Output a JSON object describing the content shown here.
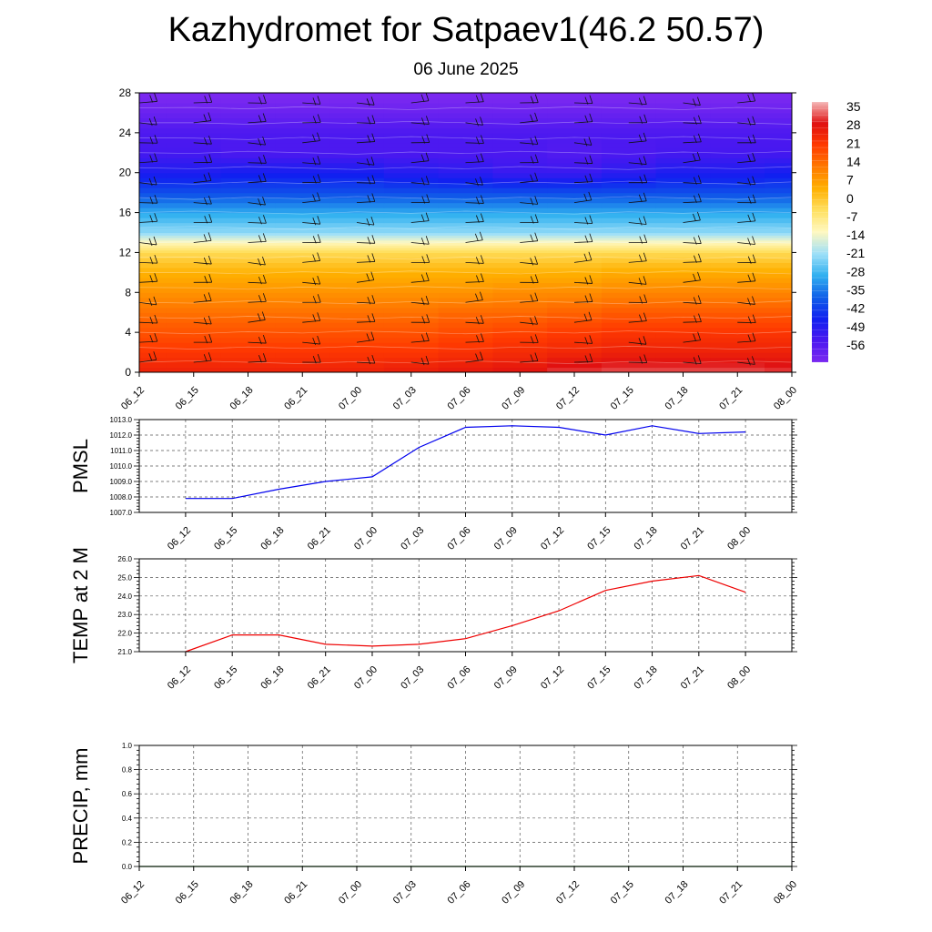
{
  "header": {
    "title": "Kazhydromet for Satpaev1(46.2 50.57)",
    "subtitle": "06 June 2025"
  },
  "chart_data": [
    {
      "type": "heatmap",
      "name": "temperature-cross-section",
      "x": [
        "06_12",
        "06_15",
        "06_18",
        "06_21",
        "07_00",
        "07_03",
        "07_06",
        "07_09",
        "07_12",
        "07_15",
        "07_18",
        "07_21",
        "08_00"
      ],
      "ylim": [
        0,
        28
      ],
      "yticks": [
        0,
        4,
        8,
        12,
        16,
        20,
        24,
        28
      ],
      "colorbar_labels": [
        "35",
        "28",
        "21",
        "14",
        "7",
        "0",
        "-7",
        "-14",
        "-21",
        "-28",
        "-35",
        "-42",
        "-49",
        "-56"
      ],
      "colorbar_stops": [
        "#f4b8b8",
        "#e01010",
        "#ff3a00",
        "#ff7a00",
        "#ffb000",
        "#ffe060",
        "#fff8c0",
        "#9ee0f8",
        "#30b0f0",
        "#1060e8",
        "#1020f0",
        "#4a18f0",
        "#7a28f0"
      ],
      "levels": [
        {
          "height": 0,
          "values": [
            26,
            26,
            26,
            26,
            26,
            27,
            28,
            29,
            32,
            33,
            33,
            33,
            32
          ]
        },
        {
          "height": 2,
          "values": [
            22,
            22,
            22,
            22,
            22,
            22,
            23,
            24,
            25,
            26,
            26,
            26,
            26
          ]
        },
        {
          "height": 4,
          "values": [
            18,
            18,
            18,
            18,
            18,
            18,
            19,
            20,
            21,
            22,
            22,
            22,
            22
          ]
        },
        {
          "height": 6,
          "values": [
            14,
            14,
            14,
            14,
            14,
            14,
            15,
            15,
            16,
            17,
            17,
            17,
            17
          ]
        },
        {
          "height": 8,
          "values": [
            9,
            9,
            9,
            9,
            9,
            9,
            9,
            10,
            10,
            11,
            11,
            11,
            11
          ]
        },
        {
          "height": 10,
          "values": [
            4,
            4,
            4,
            4,
            4,
            4,
            4,
            4,
            4,
            5,
            5,
            5,
            5
          ]
        },
        {
          "height": 12,
          "values": [
            -3,
            -3,
            -3,
            -3,
            -3,
            -3,
            -3,
            -3,
            -3,
            -3,
            -3,
            -3,
            -3
          ]
        },
        {
          "height": 13,
          "values": [
            -12,
            -12,
            -12,
            -12,
            -12,
            -12,
            -12,
            -12,
            -12,
            -12,
            -12,
            -12,
            -12
          ]
        },
        {
          "height": 14,
          "values": [
            -22,
            -22,
            -22,
            -22,
            -22,
            -22,
            -22,
            -22,
            -22,
            -22,
            -22,
            -22,
            -22
          ]
        },
        {
          "height": 16,
          "values": [
            -30,
            -30,
            -30,
            -30,
            -30,
            -30,
            -30,
            -30,
            -30,
            -30,
            -30,
            -30,
            -30
          ]
        },
        {
          "height": 18,
          "values": [
            -40,
            -40,
            -40,
            -40,
            -40,
            -40,
            -40,
            -40,
            -40,
            -40,
            -40,
            -40,
            -40
          ]
        },
        {
          "height": 20,
          "values": [
            -48,
            -48,
            -47,
            -47,
            -47,
            -49,
            -50,
            -52,
            -52,
            -50,
            -48,
            -48,
            -47
          ]
        },
        {
          "height": 22,
          "values": [
            -54,
            -54,
            -55,
            -55,
            -55,
            -55,
            -55,
            -55,
            -56,
            -55,
            -54,
            -54,
            -54
          ]
        },
        {
          "height": 24,
          "values": [
            -55,
            -55,
            -55,
            -55,
            -55,
            -55,
            -55,
            -55,
            -55,
            -55,
            -55,
            -55,
            -55
          ]
        },
        {
          "height": 26,
          "values": [
            -60,
            -60,
            -60,
            -60,
            -60,
            -60,
            -60,
            -60,
            -60,
            -60,
            -60,
            -60,
            -60
          ]
        },
        {
          "height": 28,
          "values": [
            -64,
            -64,
            -64,
            -64,
            -64,
            -64,
            -64,
            -64,
            -64,
            -64,
            -64,
            -64,
            -64
          ]
        }
      ],
      "wind_rows": [
        1,
        3,
        5,
        7,
        9,
        11,
        13,
        15,
        17,
        19,
        21,
        23,
        25,
        27
      ]
    },
    {
      "type": "line",
      "name": "pmsl",
      "ylabel": "PMSL",
      "x": [
        "06_12",
        "06_15",
        "06_18",
        "06_21",
        "07_00",
        "07_03",
        "07_06",
        "07_09",
        "07_12",
        "07_15",
        "07_18",
        "07_21",
        "08_00"
      ],
      "values": [
        1007.9,
        1007.9,
        1008.5,
        1009.0,
        1009.3,
        1011.2,
        1012.5,
        1012.6,
        1012.5,
        1012.0,
        1012.6,
        1012.1,
        1012.2
      ],
      "ylim": [
        1007.0,
        1013.0
      ],
      "yticks": [
        "1007.0",
        "1008.0",
        "1009.0",
        "1010.0",
        "1011.0",
        "1012.0",
        "1013.0"
      ],
      "color": "#0000ee",
      "grid": true
    },
    {
      "type": "line",
      "name": "temp-2m",
      "ylabel": "TEMP at 2 M",
      "x": [
        "06_12",
        "06_15",
        "06_18",
        "06_21",
        "07_00",
        "07_03",
        "07_06",
        "07_09",
        "07_12",
        "07_15",
        "07_18",
        "07_21",
        "08_00"
      ],
      "values": [
        21.0,
        21.9,
        21.9,
        21.4,
        21.3,
        21.4,
        21.7,
        22.4,
        23.2,
        24.3,
        24.8,
        25.1,
        24.2
      ],
      "ylim": [
        21.0,
        26.0
      ],
      "yticks": [
        "21.0",
        "22.0",
        "23.0",
        "24.0",
        "25.0",
        "26.0"
      ],
      "color": "#ee0000",
      "grid": true
    },
    {
      "type": "line",
      "name": "precip",
      "ylabel": "PRECIP, mm",
      "x": [
        "06_12",
        "06_15",
        "06_18",
        "06_21",
        "07_00",
        "07_03",
        "07_06",
        "07_09",
        "07_12",
        "07_15",
        "07_18",
        "07_21",
        "08_00"
      ],
      "values": [
        0,
        0,
        0,
        0,
        0,
        0,
        0,
        0,
        0,
        0,
        0,
        0,
        0
      ],
      "ylim": [
        0.0,
        1.0
      ],
      "yticks": [
        "0.0",
        "0.2",
        "0.4",
        "0.6",
        "0.8",
        "1.0"
      ],
      "color": "#007700",
      "grid": true
    }
  ]
}
